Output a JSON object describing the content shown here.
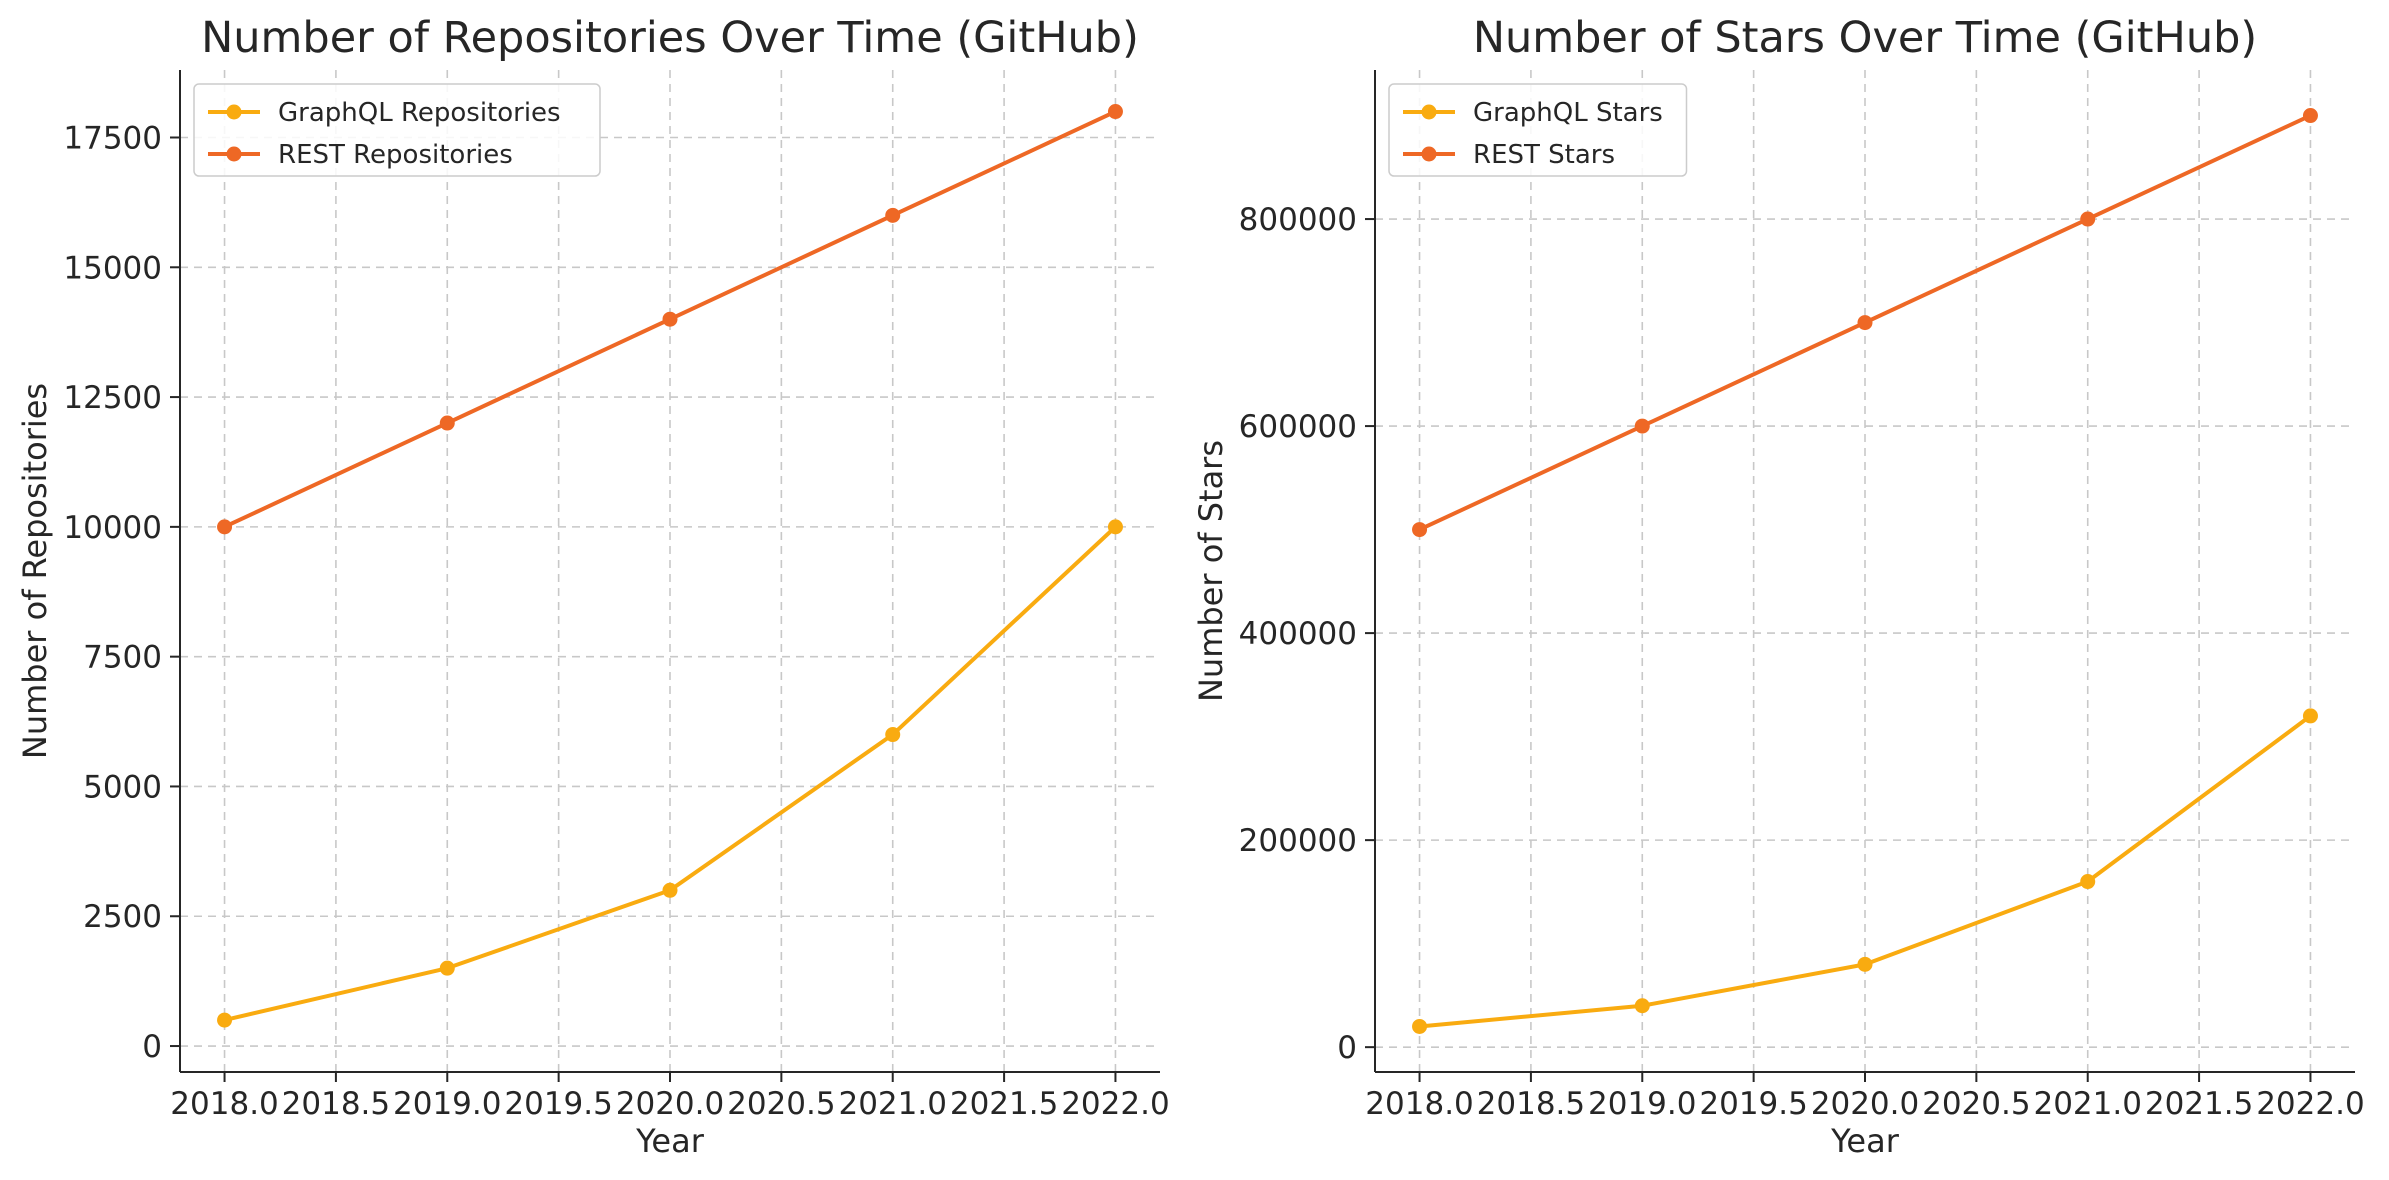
{
  "chart_data": [
    {
      "type": "line",
      "title": "Number of Repositories Over Time (GitHub)",
      "xlabel": "Year",
      "ylabel": "Number of Repositories",
      "x": [
        2018,
        2019,
        2020,
        2021,
        2022
      ],
      "xlim": [
        2017.8,
        2022.2
      ],
      "ylim": [
        -500,
        18800
      ],
      "xticks": [
        "2018.0",
        "2018.5",
        "2019.0",
        "2019.5",
        "2020.0",
        "2020.5",
        "2021.0",
        "2021.5",
        "2022.0"
      ],
      "yticks": [
        "0",
        "2500",
        "5000",
        "7500",
        "10000",
        "12500",
        "15000",
        "17500"
      ],
      "grid": true,
      "legend_position": "top-left",
      "series": [
        {
          "name": "GraphQL Repositories",
          "color": "#F9AB10",
          "values": [
            500,
            1500,
            3000,
            6000,
            10000
          ]
        },
        {
          "name": "REST Repositories",
          "color": "#EE6825",
          "values": [
            10000,
            12000,
            14000,
            16000,
            18000
          ]
        }
      ]
    },
    {
      "type": "line",
      "title": "Number of Stars Over Time (GitHub)",
      "xlabel": "Year",
      "ylabel": "Number of Stars",
      "x": [
        2018,
        2019,
        2020,
        2021,
        2022
      ],
      "xlim": [
        2017.8,
        2022.2
      ],
      "ylim": [
        -24000,
        944000
      ],
      "xticks": [
        "2018.0",
        "2018.5",
        "2019.0",
        "2019.5",
        "2020.0",
        "2020.5",
        "2021.0",
        "2021.5",
        "2022.0"
      ],
      "yticks": [
        "0",
        "200000",
        "400000",
        "600000",
        "800000"
      ],
      "grid": true,
      "legend_position": "top-left",
      "series": [
        {
          "name": "GraphQL Stars",
          "color": "#F9AB10",
          "values": [
            20000,
            40000,
            80000,
            160000,
            320000
          ]
        },
        {
          "name": "REST Stars",
          "color": "#EE6825",
          "values": [
            500000,
            600000,
            700000,
            800000,
            900000
          ]
        }
      ]
    }
  ]
}
